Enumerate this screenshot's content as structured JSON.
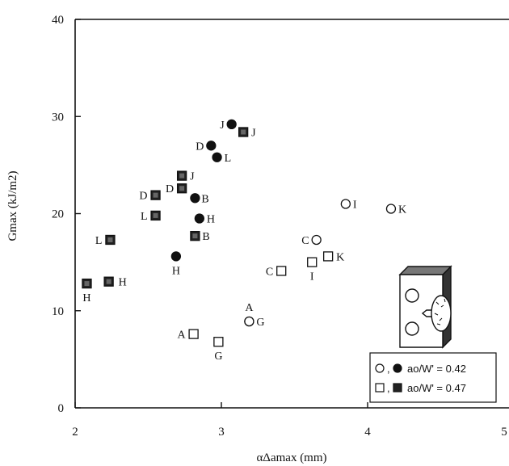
{
  "chart_data": {
    "type": "scatter",
    "xlabel": "αΔamax (mm)",
    "ylabel": "Gmax (kJ/m2)",
    "xlim": [
      2,
      5
    ],
    "ylim": [
      0,
      40
    ],
    "xticks": [
      "2",
      "3",
      "4",
      "5"
    ],
    "yticks": [
      "0",
      "10",
      "20",
      "30",
      "40"
    ],
    "grid": false,
    "legend_position": "bottom-right",
    "series": [
      {
        "name": "ao/W' = 0.42",
        "marker": "circle",
        "filled": false,
        "points": [
          {
            "x": 3.19,
            "y": 8.9,
            "label": "A"
          },
          {
            "x": 3.19,
            "y": 8.9,
            "label": "G"
          },
          {
            "x": 3.65,
            "y": 17.3,
            "label": "C"
          },
          {
            "x": 3.85,
            "y": 21.0,
            "label": "I"
          },
          {
            "x": 4.16,
            "y": 20.5,
            "label": "K"
          }
        ]
      },
      {
        "name": "ao/W' = 0.42",
        "marker": "circle",
        "filled": true,
        "points": [
          {
            "x": 3.07,
            "y": 29.2,
            "label": "J"
          },
          {
            "x": 2.93,
            "y": 27.0,
            "label": "D"
          },
          {
            "x": 2.97,
            "y": 25.8,
            "label": "L"
          },
          {
            "x": 2.82,
            "y": 21.6,
            "label": "B"
          },
          {
            "x": 2.85,
            "y": 19.5,
            "label": "H"
          },
          {
            "x": 2.69,
            "y": 15.6,
            "label": "H"
          }
        ]
      },
      {
        "name": "ao/W' = 0.47",
        "marker": "square",
        "filled": false,
        "points": [
          {
            "x": 2.81,
            "y": 7.6,
            "label": "A"
          },
          {
            "x": 2.98,
            "y": 6.8,
            "label": "G"
          },
          {
            "x": 3.41,
            "y": 14.1,
            "label": "C"
          },
          {
            "x": 3.62,
            "y": 15.0,
            "label": "I"
          },
          {
            "x": 3.73,
            "y": 15.6,
            "label": "K"
          }
        ]
      },
      {
        "name": "ao/W' = 0.47",
        "marker": "square",
        "filled": true,
        "points": [
          {
            "x": 3.15,
            "y": 28.4,
            "label": "J"
          },
          {
            "x": 2.73,
            "y": 23.9,
            "label": "J"
          },
          {
            "x": 2.73,
            "y": 22.6,
            "label": "D"
          },
          {
            "x": 2.55,
            "y": 21.9,
            "label": "D"
          },
          {
            "x": 2.55,
            "y": 19.8,
            "label": "L"
          },
          {
            "x": 2.82,
            "y": 17.7,
            "label": "B"
          },
          {
            "x": 2.24,
            "y": 17.3,
            "label": "L"
          },
          {
            "x": 2.23,
            "y": 13.0,
            "label": "H"
          },
          {
            "x": 2.08,
            "y": 12.8,
            "label": "H"
          }
        ]
      }
    ],
    "legend": [
      {
        "markers": [
          "circle-open",
          "circle-filled"
        ],
        "separator": ",",
        "text": "ao/W' = 0.42"
      },
      {
        "markers": [
          "square-open",
          "square-filled"
        ],
        "separator": ",",
        "text": "ao/W' = 0.47"
      }
    ]
  }
}
